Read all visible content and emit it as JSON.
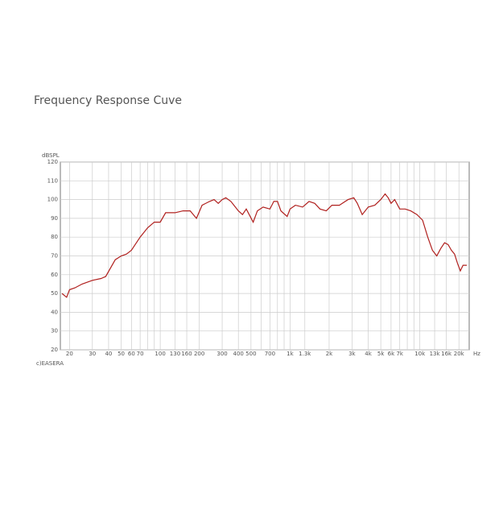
{
  "chart_data": {
    "type": "line",
    "title": "Frequency Response Cuve",
    "ylabel": "dBSPL",
    "xlabel": "Hz",
    "watermark": "c)EASERA",
    "xscale": "log",
    "grid": true,
    "color": "#b0201e",
    "xlim": [
      17,
      24000
    ],
    "ylim": [
      20,
      120
    ],
    "yticks": [
      20,
      30,
      40,
      50,
      60,
      70,
      80,
      90,
      100,
      110,
      120
    ],
    "xticks": [
      20,
      30,
      40,
      50,
      60,
      70,
      100,
      130,
      160,
      200,
      300,
      400,
      500,
      700,
      {
        "value": 1000,
        "label": "1k"
      },
      {
        "value": 1300,
        "label": "1.3k"
      },
      {
        "value": 2000,
        "label": "2k"
      },
      {
        "value": 3000,
        "label": "3k"
      },
      {
        "value": 4000,
        "label": "4k"
      },
      {
        "value": 5000,
        "label": "5k"
      },
      {
        "value": 6000,
        "label": "6k"
      },
      {
        "value": 7000,
        "label": "7k"
      },
      {
        "value": 10000,
        "label": "10k"
      },
      {
        "value": 13000,
        "label": "13k"
      },
      {
        "value": 16000,
        "label": "16k"
      },
      {
        "value": 20000,
        "label": "20k"
      }
    ],
    "xminor": [
      80,
      90,
      600,
      800,
      900,
      8000,
      9000
    ],
    "x": [
      17.5,
      19,
      20,
      22,
      25,
      30,
      35,
      38,
      45,
      50,
      55,
      60,
      70,
      80,
      90,
      100,
      110,
      130,
      150,
      170,
      190,
      210,
      240,
      260,
      280,
      300,
      320,
      350,
      400,
      430,
      460,
      520,
      560,
      620,
      700,
      750,
      800,
      850,
      950,
      1000,
      1100,
      1250,
      1400,
      1550,
      1700,
      1900,
      2100,
      2400,
      2800,
      3100,
      3300,
      3600,
      4000,
      4500,
      5000,
      5400,
      5700,
      6000,
      6400,
      7000,
      7700,
      8500,
      9500,
      10500,
      11500,
      12500,
      13500,
      14500,
      15500,
      16500,
      17500,
      18500,
      19500,
      20500,
      21500,
      23000
    ],
    "values": [
      50,
      48,
      52,
      53,
      55,
      57,
      58,
      59,
      68,
      70,
      71,
      73,
      80,
      85,
      88,
      88,
      93,
      93,
      94,
      94,
      90,
      97,
      99,
      100,
      98,
      100,
      101,
      99,
      94,
      92,
      95,
      88,
      94,
      96,
      95,
      99,
      99,
      94,
      91,
      95,
      97,
      96,
      99,
      98,
      95,
      94,
      97,
      97,
      100,
      101,
      98,
      92,
      96,
      97,
      100,
      103,
      101,
      98,
      100,
      95,
      95,
      94,
      92,
      89,
      80,
      73,
      70,
      74,
      77,
      76,
      73,
      71,
      66,
      62,
      65,
      65
    ]
  }
}
